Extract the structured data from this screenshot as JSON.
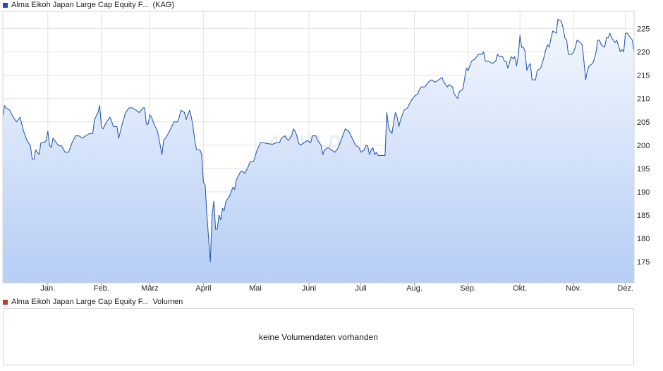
{
  "colors": {
    "price_line": "#2a5db0",
    "price_swatch": "#1f4fa8",
    "volume_swatch": "#c0392b",
    "grid": "#e2e2e2",
    "fill_top": "#f4f8fe",
    "fill_bottom": "#b6cdf5"
  },
  "legend": {
    "price_name": "Alma Eikoh Japan Large Cap Equity F...",
    "price_suffix": "(KAG)",
    "volume_name": "Alma Eikoh Japan Large Cap Equity F...",
    "volume_suffix": "Volumen"
  },
  "watermark": "ARIVA.DE",
  "volume_message": "keine Volumendaten vorhanden",
  "chart_data": {
    "type": "area",
    "title": "",
    "xlabel": "",
    "ylabel": "",
    "ylim": [
      170.5,
      228.7
    ],
    "yticks": [
      175,
      180,
      185,
      190,
      195,
      200,
      205,
      210,
      215,
      220,
      225
    ],
    "xlim": [
      0,
      365
    ],
    "month_labels": [
      "Jan.",
      "Feb.",
      "März",
      "April",
      "Mai",
      "Juni",
      "Juli",
      "Aug.",
      "Sep.",
      "Okt.",
      "Nov.",
      "Dez."
    ],
    "month_positions": [
      26,
      57,
      85,
      116,
      146,
      177,
      207,
      238,
      269,
      299,
      330,
      360
    ],
    "grid": true,
    "legend_position": "top-left",
    "series": [
      {
        "values": [
          [
            0,
            206.0
          ],
          [
            1,
            208.5
          ],
          [
            2,
            208.0
          ],
          [
            4,
            207.5
          ],
          [
            6,
            206.0
          ],
          [
            8,
            205.0
          ],
          [
            9,
            205.5
          ],
          [
            10,
            206.0
          ],
          [
            12,
            203.0
          ],
          [
            14,
            201.0
          ],
          [
            16,
            199.8
          ],
          [
            17,
            197.0
          ],
          [
            18,
            197.0
          ],
          [
            19,
            199.0
          ],
          [
            20,
            198.5
          ],
          [
            21,
            198.0
          ],
          [
            22,
            200.5
          ],
          [
            24,
            200.5
          ],
          [
            25,
            201.0
          ],
          [
            26,
            203.0
          ],
          [
            27,
            200.0
          ],
          [
            28,
            199.5
          ],
          [
            29,
            201.5
          ],
          [
            30,
            201.0
          ],
          [
            32,
            200.0
          ],
          [
            34,
            199.8
          ],
          [
            36,
            198.5
          ],
          [
            38,
            198.5
          ],
          [
            40,
            200.5
          ],
          [
            42,
            202.0
          ],
          [
            44,
            202.0
          ],
          [
            46,
            201.5
          ],
          [
            48,
            202.0
          ],
          [
            50,
            202.5
          ],
          [
            52,
            202.5
          ],
          [
            53,
            205.5
          ],
          [
            55,
            207.0
          ],
          [
            56,
            208.5
          ],
          [
            57,
            204.0
          ],
          [
            58,
            203.5
          ],
          [
            60,
            205.0
          ],
          [
            62,
            206.0
          ],
          [
            63,
            205.0
          ],
          [
            64,
            204.0
          ],
          [
            66,
            204.0
          ],
          [
            67,
            201.5
          ],
          [
            69,
            204.5
          ],
          [
            71,
            207.0
          ],
          [
            73,
            208.0
          ],
          [
            75,
            208.0
          ],
          [
            77,
            207.5
          ],
          [
            79,
            207.0
          ],
          [
            81,
            208.0
          ],
          [
            82,
            208.0
          ],
          [
            83,
            204.5
          ],
          [
            84,
            204.5
          ],
          [
            85,
            206.5
          ],
          [
            86,
            206.0
          ],
          [
            88,
            204.0
          ],
          [
            89,
            203.5
          ],
          [
            90,
            202.0
          ],
          [
            92,
            198.0
          ],
          [
            93,
            201.0
          ],
          [
            95,
            202.0
          ],
          [
            97,
            203.5
          ],
          [
            99,
            205.0
          ],
          [
            101,
            205.0
          ],
          [
            102,
            206.0
          ],
          [
            103,
            207.5
          ],
          [
            105,
            207.0
          ],
          [
            106,
            205.5
          ],
          [
            108,
            207.5
          ],
          [
            109,
            206.0
          ],
          [
            110,
            204.0
          ],
          [
            111,
            201.0
          ],
          [
            112,
            199.0
          ],
          [
            114,
            199.0
          ],
          [
            115,
            198.0
          ],
          [
            116,
            192.0
          ],
          [
            117,
            191.5
          ],
          [
            118,
            185.0
          ],
          [
            119,
            180.0
          ],
          [
            120,
            175.0
          ],
          [
            121,
            185.0
          ],
          [
            122,
            188.0
          ],
          [
            123,
            182.0
          ],
          [
            124,
            182.0
          ],
          [
            125,
            185.0
          ],
          [
            126,
            184.0
          ],
          [
            127,
            186.5
          ],
          [
            128,
            186.0
          ],
          [
            129,
            188.0
          ],
          [
            131,
            189.0
          ],
          [
            133,
            191.0
          ],
          [
            134,
            190.5
          ],
          [
            135,
            192.5
          ],
          [
            137,
            194.0
          ],
          [
            138,
            194.5
          ],
          [
            140,
            194.0
          ],
          [
            142,
            195.5
          ],
          [
            143,
            196.5
          ],
          [
            145,
            196.5
          ],
          [
            147,
            199.0
          ],
          [
            149,
            200.5
          ],
          [
            151,
            200.5
          ],
          [
            154,
            200.3
          ],
          [
            156,
            200.2
          ],
          [
            158,
            200.5
          ],
          [
            160,
            200.5
          ],
          [
            161,
            201.5
          ],
          [
            163,
            202.0
          ],
          [
            165,
            201.0
          ],
          [
            167,
            202.0
          ],
          [
            168,
            203.5
          ],
          [
            169,
            203.0
          ],
          [
            170,
            202.0
          ],
          [
            171,
            200.5
          ],
          [
            172,
            200.0
          ],
          [
            174,
            200.5
          ],
          [
            176,
            201.0
          ],
          [
            178,
            200.5
          ],
          [
            179,
            202.0
          ],
          [
            181,
            202.0
          ],
          [
            182,
            201.0
          ],
          [
            184,
            200.0
          ],
          [
            185,
            198.0
          ],
          [
            186,
            199.0
          ],
          [
            188,
            199.5
          ],
          [
            190,
            199.0
          ],
          [
            192,
            198.5
          ],
          [
            194,
            199.5
          ],
          [
            196,
            201.5
          ],
          [
            198,
            203.5
          ],
          [
            200,
            203.0
          ],
          [
            202,
            201.5
          ],
          [
            204,
            200.0
          ],
          [
            206,
            199.5
          ],
          [
            207,
            198.5
          ],
          [
            209,
            199.0
          ],
          [
            210,
            200.0
          ],
          [
            211,
            199.8
          ],
          [
            212,
            198.0
          ],
          [
            213,
            199.0
          ],
          [
            214,
            199.5
          ],
          [
            215,
            198.0
          ],
          [
            216,
            198.5
          ],
          [
            217,
            197.8
          ],
          [
            219,
            197.8
          ],
          [
            220,
            197.8
          ],
          [
            221,
            197.8
          ],
          [
            222,
            207.0
          ],
          [
            223,
            204.0
          ],
          [
            224,
            203.0
          ],
          [
            225,
            202.5
          ],
          [
            226,
            205.0
          ],
          [
            227,
            207.0
          ],
          [
            228,
            206.0
          ],
          [
            229,
            204.0
          ],
          [
            230,
            205.5
          ],
          [
            231,
            206.5
          ],
          [
            232,
            207.5
          ],
          [
            234,
            208.0
          ],
          [
            236,
            209.5
          ],
          [
            238,
            210.5
          ],
          [
            240,
            211.0
          ],
          [
            241,
            212.0
          ],
          [
            242,
            212.5
          ],
          [
            244,
            212.5
          ],
          [
            246,
            213.5
          ],
          [
            248,
            214.0
          ],
          [
            250,
            213.5
          ],
          [
            252,
            214.0
          ],
          [
            254,
            214.5
          ],
          [
            255,
            213.5
          ],
          [
            256,
            213.0
          ],
          [
            257,
            212.5
          ],
          [
            258,
            213.0
          ],
          [
            260,
            212.5
          ],
          [
            261,
            211.0
          ],
          [
            263,
            210.0
          ],
          [
            264,
            211.5
          ],
          [
            266,
            212.0
          ],
          [
            268,
            216.5
          ],
          [
            269,
            216.0
          ],
          [
            271,
            218.0
          ],
          [
            273,
            218.5
          ],
          [
            275,
            219.5
          ],
          [
            277,
            219.5
          ],
          [
            278,
            220.0
          ],
          [
            279,
            218.0
          ],
          [
            281,
            218.0
          ],
          [
            283,
            217.5
          ],
          [
            285,
            218.0
          ],
          [
            286,
            219.5
          ],
          [
            287,
            219.0
          ],
          [
            288,
            219.0
          ],
          [
            289,
            219.0
          ],
          [
            290,
            218.0
          ],
          [
            291,
            218.0
          ],
          [
            292,
            216.5
          ],
          [
            294,
            219.0
          ],
          [
            295,
            218.5
          ],
          [
            296,
            219.0
          ],
          [
            297,
            217.0
          ],
          [
            298,
            219.0
          ],
          [
            299,
            223.5
          ],
          [
            300,
            221.0
          ],
          [
            301,
            221.0
          ],
          [
            302,
            220.0
          ],
          [
            303,
            216.0
          ],
          [
            304,
            217.0
          ],
          [
            305,
            217.5
          ],
          [
            306,
            214.0
          ],
          [
            308,
            214.0
          ],
          [
            309,
            216.0
          ],
          [
            311,
            216.5
          ],
          [
            313,
            219.0
          ],
          [
            314,
            220.5
          ],
          [
            315,
            221.5
          ],
          [
            316,
            221.0
          ],
          [
            317,
            223.0
          ],
          [
            318,
            224.5
          ],
          [
            320,
            224.0
          ],
          [
            321,
            227.0
          ],
          [
            323,
            226.5
          ],
          [
            324,
            225.0
          ],
          [
            325,
            223.0
          ],
          [
            326,
            222.5
          ],
          [
            327,
            219.5
          ],
          [
            329,
            219.5
          ],
          [
            330,
            220.0
          ],
          [
            331,
            221.0
          ],
          [
            332,
            222.5
          ],
          [
            334,
            222.0
          ],
          [
            335,
            221.5
          ],
          [
            336,
            218.0
          ],
          [
            337,
            214.0
          ],
          [
            338,
            216.0
          ],
          [
            339,
            217.0
          ],
          [
            341,
            217.5
          ],
          [
            342,
            218.5
          ],
          [
            343,
            220.0
          ],
          [
            344,
            222.5
          ],
          [
            345,
            222.5
          ],
          [
            346,
            221.5
          ],
          [
            348,
            221.0
          ],
          [
            349,
            223.0
          ],
          [
            350,
            223.0
          ],
          [
            351,
            224.0
          ],
          [
            352,
            223.0
          ],
          [
            354,
            222.0
          ],
          [
            355,
            222.5
          ],
          [
            357,
            220.0
          ],
          [
            358,
            220.5
          ],
          [
            359,
            220.0
          ],
          [
            360,
            224.0
          ],
          [
            361,
            224.0
          ],
          [
            362,
            223.5
          ],
          [
            363,
            223.0
          ],
          [
            364,
            222.5
          ],
          [
            365,
            220.0
          ]
        ]
      }
    ]
  }
}
